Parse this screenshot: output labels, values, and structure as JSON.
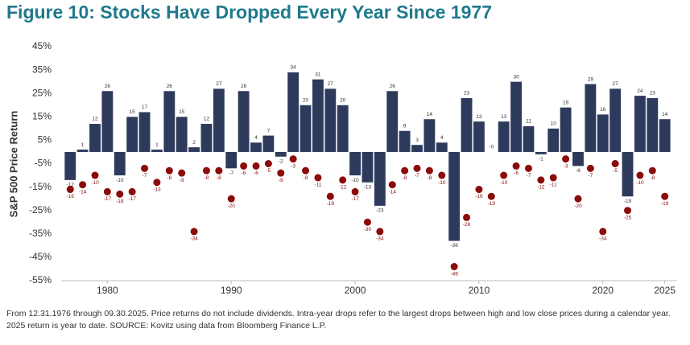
{
  "chart_data": {
    "type": "bar",
    "title": "Figure 10: Stocks Have Dropped Every Year Since 1977",
    "ylabel": "S&P 500 Price Return",
    "note": "From 12.31.1976 through 09.30.2025. Price returns do not include dividends. Intra-year drops refer to the largest drops between high and low close prices during a calendar year. 2025 return is year to date. SOURCE: Kovitz using data from Bloomberg Finance L.P.",
    "x": [
      1977,
      1978,
      1979,
      1980,
      1981,
      1982,
      1983,
      1984,
      1985,
      1986,
      1987,
      1988,
      1989,
      1990,
      1991,
      1992,
      1993,
      1994,
      1995,
      1996,
      1997,
      1998,
      1999,
      2000,
      2001,
      2002,
      2003,
      2004,
      2005,
      2006,
      2007,
      2008,
      2009,
      2010,
      2011,
      2012,
      2013,
      2014,
      2015,
      2016,
      2017,
      2018,
      2019,
      2020,
      2021,
      2022,
      2023,
      2024,
      2025
    ],
    "xlim": [
      1976.4,
      2025.8
    ],
    "xticks": [
      1980,
      1990,
      2000,
      2010,
      2020,
      2025
    ],
    "ylim": [
      -55,
      45
    ],
    "yticks": [
      {
        "value": 45,
        "label": "45%"
      },
      {
        "value": 35,
        "label": "35%"
      },
      {
        "value": 25,
        "label": "25%"
      },
      {
        "value": 15,
        "label": "15%"
      },
      {
        "value": 5,
        "label": "5%"
      },
      {
        "value": -5,
        "label": "-5%"
      },
      {
        "value": -15,
        "label": "-15%"
      },
      {
        "value": -25,
        "label": "-25%"
      },
      {
        "value": -35,
        "label": "-35%"
      },
      {
        "value": -45,
        "label": "-45%"
      },
      {
        "value": -55,
        "label": "-55%"
      }
    ],
    "grid": false,
    "series": [
      {
        "type": "bar",
        "color": "#2e3a5c",
        "values": [
          -12,
          1,
          12,
          26,
          -10,
          15,
          17,
          1,
          26,
          15,
          2,
          12,
          27,
          -7,
          26,
          4,
          7,
          -2,
          34,
          20,
          31,
          27,
          20,
          -10,
          -13,
          -23,
          26,
          9,
          3,
          14,
          4,
          -38,
          23,
          13,
          0,
          13,
          30,
          11,
          -1,
          10,
          19,
          -6,
          29,
          16,
          27,
          -19,
          24,
          23,
          14
        ],
        "value_labels": [
          "-12",
          "1",
          "12",
          "26",
          "-10",
          "15",
          "17",
          "1",
          "26",
          "15",
          "2",
          "12",
          "27",
          "-7",
          "26",
          "4",
          "7",
          "-2",
          "34",
          "20",
          "31",
          "27",
          "20",
          "-10",
          "-13",
          "-23",
          "26",
          "9",
          "3",
          "14",
          "4",
          "-38",
          "23",
          "13",
          "-0",
          "13",
          "30",
          "11",
          "-1",
          "10",
          "19",
          "-6",
          "29",
          "16",
          "27",
          "-19",
          "24",
          "23",
          "14"
        ]
      },
      {
        "type": "scatter",
        "color": "#8b0a0a",
        "values": [
          -16,
          -14,
          -10,
          -17,
          -18,
          -17,
          -7,
          -13,
          -8,
          -9,
          -34,
          -8,
          -8,
          -20,
          -6,
          -6,
          -5,
          -9,
          -3,
          -8,
          -11,
          -19,
          -12,
          -17,
          -30,
          -34,
          -14,
          -8,
          -7,
          -8,
          -10,
          -49,
          -28,
          -16,
          -19,
          -10,
          -6,
          -7,
          -12,
          -11,
          -3,
          -20,
          -7,
          -34,
          -5,
          -25,
          -10,
          -8,
          -19
        ]
      }
    ]
  }
}
